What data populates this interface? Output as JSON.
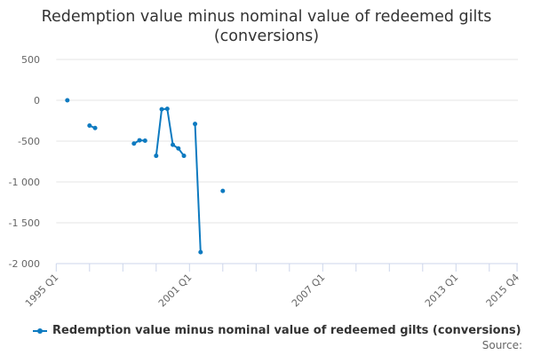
{
  "title_line1": "Redemption value minus nominal value of redeemed gilts",
  "title_line2": "(conversions)",
  "legend_label": "Redemption value minus nominal value of redeemed gilts (conversions)",
  "source_label": "Source:",
  "series_color": "#0d7ac0",
  "chart_data": {
    "type": "line",
    "title": "Redemption value minus nominal value of redeemed gilts (conversions)",
    "xlabel": "",
    "ylabel": "",
    "ylim": [
      -2000,
      500
    ],
    "yticks": [
      500,
      0,
      -500,
      -1000,
      -1500,
      -2000
    ],
    "ytick_labels": [
      "500",
      "0",
      "-500",
      "-1 000",
      "-1 500",
      "-2 000"
    ],
    "xtick_labels": [
      "1995 Q1",
      "2001 Q1",
      "2007 Q1",
      "2013 Q1",
      "2015 Q4"
    ],
    "x_range": [
      "1995 Q1",
      "2015 Q4"
    ],
    "grid": true,
    "legend_position": "bottom",
    "series": [
      {
        "name": "Redemption value minus nominal value of redeemed gilts (conversions)",
        "points": [
          {
            "x": "1995 Q3",
            "y": 0
          },
          {
            "x": "1996 Q3",
            "y": -310
          },
          {
            "x": "1996 Q4",
            "y": -340
          },
          {
            "x": "1998 Q3",
            "y": -530
          },
          {
            "x": "1998 Q4",
            "y": -490
          },
          {
            "x": "1999 Q1",
            "y": -495
          },
          {
            "x": "1999 Q3",
            "y": -680
          },
          {
            "x": "1999 Q4",
            "y": -110
          },
          {
            "x": "2000 Q1",
            "y": -105
          },
          {
            "x": "2000 Q2",
            "y": -545
          },
          {
            "x": "2000 Q3",
            "y": -590
          },
          {
            "x": "2000 Q4",
            "y": -680
          },
          {
            "x": "2001 Q2",
            "y": -290
          },
          {
            "x": "2001 Q3",
            "y": -1860
          },
          {
            "x": "2002 Q3",
            "y": -1110
          }
        ]
      }
    ]
  }
}
